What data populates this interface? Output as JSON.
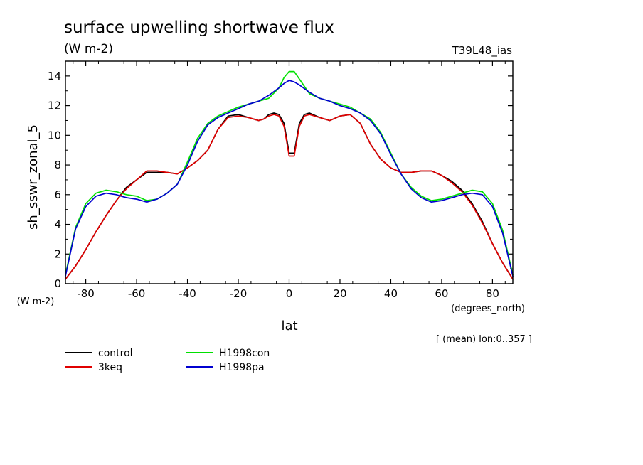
{
  "chart_data": {
    "type": "line",
    "title": "surface upwelling shortwave flux",
    "subtitle": "(W m-2)",
    "run_label": "T39L48_ias",
    "ylabel": "sh_sswr_zonal_5",
    "y_units": "(W m-2)",
    "xlabel": "lat",
    "x_units": "(degrees_north)",
    "footnote": "[ (mean) lon:0..357 ]",
    "xlim": [
      -88,
      88
    ],
    "ylim": [
      0,
      15
    ],
    "x_ticks": [
      -80,
      -60,
      -40,
      -20,
      0,
      20,
      40,
      60,
      80
    ],
    "x_tick_labels": [
      "-80",
      "-60",
      "-40",
      "-20",
      "0",
      "20",
      "40",
      "60",
      "80"
    ],
    "y_ticks": [
      0,
      2,
      4,
      6,
      8,
      10,
      12,
      14
    ],
    "y_tick_labels": [
      "0",
      "2",
      "4",
      "6",
      "8",
      "10",
      "12",
      "14"
    ],
    "series": [
      {
        "name": "control",
        "color": "#000000",
        "x": [
          -88,
          -84,
          -80,
          -76,
          -72,
          -68,
          -64,
          -60,
          -56,
          -52,
          -48,
          -44,
          -40,
          -36,
          -32,
          -28,
          -24,
          -20,
          -16,
          -12,
          -10,
          -8,
          -6,
          -4,
          -2,
          0,
          2,
          4,
          6,
          8,
          12,
          16,
          20,
          24,
          28,
          32,
          36,
          40,
          44,
          48,
          52,
          56,
          60,
          64,
          68,
          72,
          76,
          80,
          84,
          88
        ],
        "y": [
          0.3,
          1.2,
          2.3,
          3.5,
          4.6,
          5.6,
          6.5,
          7.0,
          7.5,
          7.5,
          7.5,
          7.4,
          7.8,
          8.3,
          9.0,
          10.4,
          11.3,
          11.4,
          11.2,
          11.0,
          11.1,
          11.4,
          11.5,
          11.4,
          10.8,
          8.8,
          8.8,
          10.8,
          11.4,
          11.5,
          11.2,
          11.0,
          11.3,
          11.4,
          10.8,
          9.4,
          8.4,
          7.8,
          7.5,
          7.5,
          7.6,
          7.6,
          7.3,
          6.9,
          6.3,
          5.4,
          4.2,
          2.7,
          1.4,
          0.3
        ]
      },
      {
        "name": "3keq",
        "color": "#e00000",
        "x": [
          -88,
          -84,
          -80,
          -76,
          -72,
          -68,
          -64,
          -60,
          -56,
          -52,
          -48,
          -44,
          -40,
          -36,
          -32,
          -28,
          -24,
          -20,
          -16,
          -12,
          -10,
          -8,
          -6,
          -4,
          -2,
          0,
          2,
          4,
          6,
          8,
          12,
          16,
          20,
          24,
          28,
          32,
          36,
          40,
          44,
          48,
          52,
          56,
          60,
          64,
          68,
          72,
          76,
          80,
          84,
          88
        ],
        "y": [
          0.3,
          1.2,
          2.3,
          3.5,
          4.6,
          5.6,
          6.4,
          7.0,
          7.6,
          7.6,
          7.5,
          7.4,
          7.8,
          8.3,
          9.0,
          10.4,
          11.2,
          11.3,
          11.2,
          11.0,
          11.1,
          11.3,
          11.4,
          11.3,
          10.6,
          8.6,
          8.6,
          10.6,
          11.3,
          11.4,
          11.2,
          11.0,
          11.3,
          11.4,
          10.8,
          9.4,
          8.4,
          7.8,
          7.5,
          7.5,
          7.6,
          7.6,
          7.3,
          6.8,
          6.2,
          5.3,
          4.1,
          2.7,
          1.4,
          0.3
        ]
      },
      {
        "name": "H1998con",
        "color": "#00e000",
        "x": [
          -88,
          -84,
          -80,
          -76,
          -72,
          -68,
          -64,
          -60,
          -56,
          -52,
          -48,
          -44,
          -40,
          -36,
          -32,
          -28,
          -24,
          -20,
          -16,
          -12,
          -8,
          -4,
          -2,
          0,
          2,
          4,
          8,
          12,
          16,
          20,
          24,
          28,
          32,
          36,
          40,
          44,
          48,
          52,
          56,
          60,
          64,
          68,
          72,
          76,
          80,
          84,
          88
        ],
        "y": [
          0.6,
          3.8,
          5.4,
          6.1,
          6.3,
          6.2,
          6.0,
          5.9,
          5.6,
          5.7,
          6.1,
          6.7,
          8.2,
          9.8,
          10.8,
          11.3,
          11.6,
          11.9,
          12.1,
          12.3,
          12.5,
          13.2,
          13.9,
          14.3,
          14.3,
          13.8,
          12.8,
          12.5,
          12.3,
          12.1,
          11.9,
          11.5,
          11.1,
          10.2,
          8.8,
          7.4,
          6.5,
          5.9,
          5.6,
          5.7,
          5.9,
          6.1,
          6.3,
          6.2,
          5.4,
          3.6,
          0.6
        ]
      },
      {
        "name": "H1998pa",
        "color": "#0000d0",
        "x": [
          -88,
          -84,
          -80,
          -76,
          -72,
          -68,
          -64,
          -60,
          -56,
          -52,
          -48,
          -44,
          -40,
          -36,
          -32,
          -28,
          -24,
          -20,
          -16,
          -12,
          -8,
          -4,
          -2,
          0,
          2,
          4,
          8,
          12,
          16,
          20,
          24,
          28,
          32,
          36,
          40,
          44,
          48,
          52,
          56,
          60,
          64,
          68,
          72,
          76,
          80,
          84,
          88
        ],
        "y": [
          0.5,
          3.7,
          5.2,
          5.9,
          6.1,
          6.0,
          5.8,
          5.7,
          5.5,
          5.7,
          6.1,
          6.7,
          8.0,
          9.6,
          10.7,
          11.2,
          11.5,
          11.8,
          12.1,
          12.3,
          12.7,
          13.2,
          13.5,
          13.7,
          13.6,
          13.4,
          12.9,
          12.5,
          12.3,
          12.0,
          11.8,
          11.5,
          11.0,
          10.1,
          8.7,
          7.4,
          6.4,
          5.8,
          5.5,
          5.6,
          5.8,
          6.0,
          6.1,
          6.0,
          5.2,
          3.4,
          0.5
        ]
      }
    ],
    "legend_position": "bottom-left"
  }
}
